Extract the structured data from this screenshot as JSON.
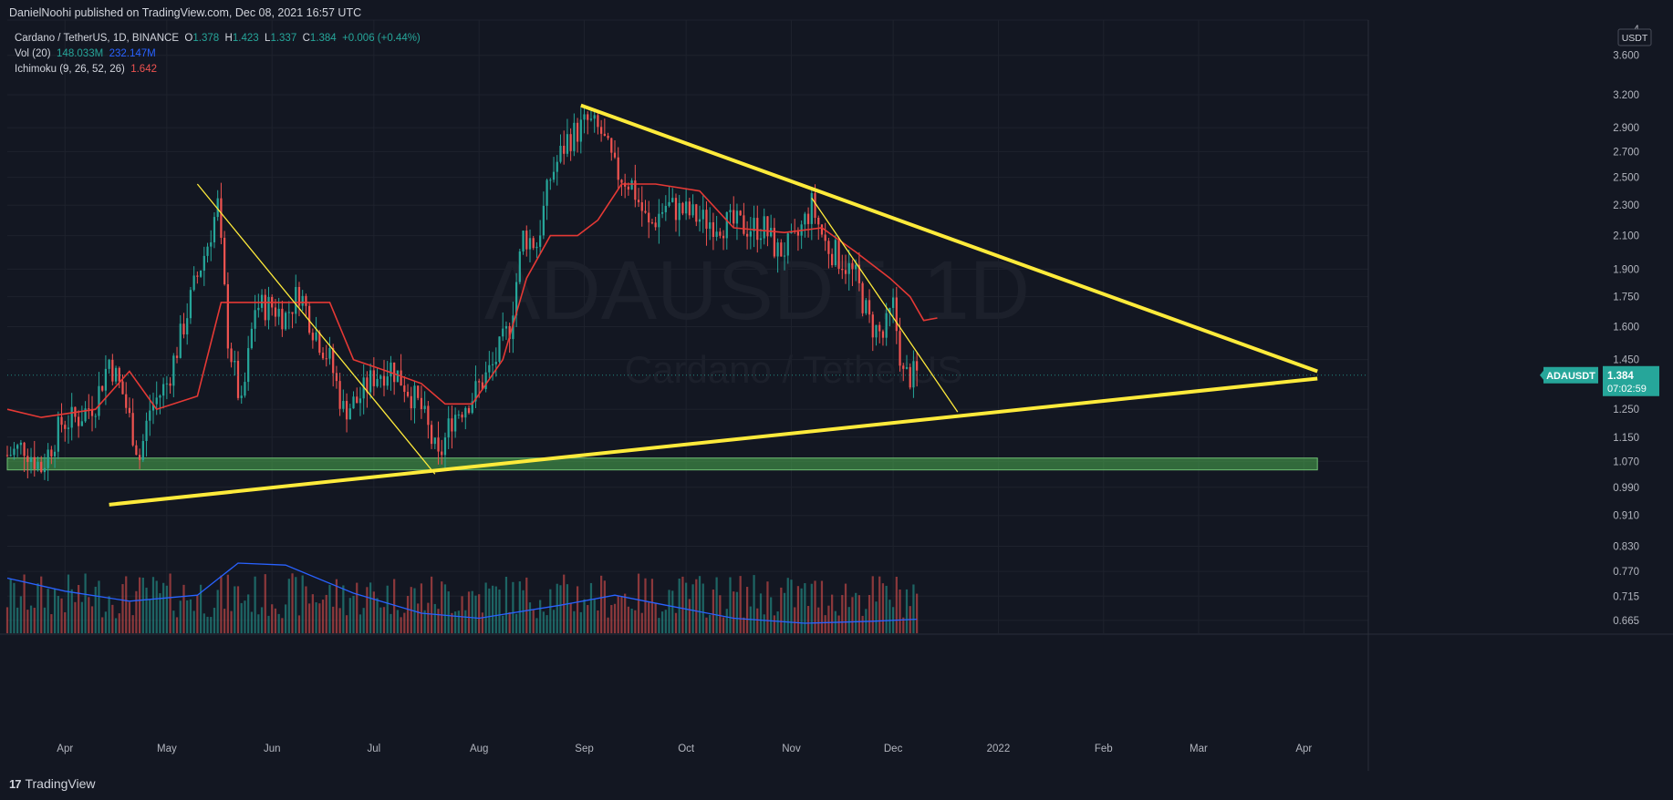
{
  "publisher": "DanielNoohi published on TradingView.com, Dec 08, 2021 16:57 UTC",
  "legend": {
    "symbol_line": "Cardano / TetherUS, 1D, BINANCE",
    "o_label": "O",
    "o": "1.378",
    "h_label": "H",
    "h": "1.423",
    "l_label": "L",
    "l": "1.337",
    "c_label": "C",
    "c": "1.384",
    "change": "+0.006 (+0.44%)",
    "vol_label": "Vol (20)",
    "vol_value": "148.033M",
    "vol_ma": "232.147M",
    "ichimoku_label": "Ichimoku (9, 26, 52, 26)",
    "ichimoku_value": "1.642"
  },
  "watermark": {
    "ticker": "ADAUSDT, 1D",
    "name": "Cardano / TetherUS"
  },
  "price_tag": {
    "symbol": "ADAUSDT",
    "price": "1.384",
    "countdown": "07:02:59"
  },
  "currency": "USDT",
  "footer": {
    "logo_mark": "17",
    "brand": "TradingView"
  },
  "colors": {
    "background": "#131722",
    "up": "#26a69a",
    "down": "#ef5350",
    "trendline": "#ffeb3b",
    "kijun": "#e53935",
    "volume_ma": "#2962ff",
    "support_zone": "#4caf50"
  },
  "chart_data": {
    "type": "candlestick",
    "y_scale": "log",
    "ylim": [
      0.64,
      4.0
    ],
    "yticks": [
      "4",
      "3.600",
      "3.200",
      "2.900",
      "2.700",
      "2.500",
      "2.300",
      "2.100",
      "1.900",
      "1.750",
      "1.600",
      "1.450",
      "1.250",
      "1.150",
      "1.070",
      "0.990",
      "0.910",
      "0.830",
      "0.770",
      "0.715",
      "0.665"
    ],
    "xticks": [
      "Apr",
      "May",
      "Jun",
      "Jul",
      "Aug",
      "Sep",
      "Oct",
      "Nov",
      "Dec",
      "2022",
      "Feb",
      "Mar",
      "Apr"
    ],
    "xtick_dates": [
      "2021-04-01",
      "2021-05-01",
      "2021-06-01",
      "2021-07-01",
      "2021-08-01",
      "2021-09-01",
      "2021-10-01",
      "2021-11-01",
      "2021-12-01",
      "2022-01-01",
      "2022-02-01",
      "2022-03-01",
      "2022-04-01"
    ],
    "x_range": [
      "2021-03-15",
      "2022-04-20"
    ],
    "close_path": [
      [
        "2021-03-15",
        1.09
      ],
      [
        "2021-03-20",
        1.12
      ],
      [
        "2021-03-25",
        1.05
      ],
      [
        "2021-03-31",
        1.2
      ],
      [
        "2021-04-05",
        1.22
      ],
      [
        "2021-04-10",
        1.28
      ],
      [
        "2021-04-14",
        1.45
      ],
      [
        "2021-04-18",
        1.31
      ],
      [
        "2021-04-23",
        1.08
      ],
      [
        "2021-04-26",
        1.25
      ],
      [
        "2021-05-01",
        1.35
      ],
      [
        "2021-05-05",
        1.55
      ],
      [
        "2021-05-09",
        1.8
      ],
      [
        "2021-05-13",
        2.05
      ],
      [
        "2021-05-16",
        2.3
      ],
      [
        "2021-05-19",
        1.55
      ],
      [
        "2021-05-23",
        1.25
      ],
      [
        "2021-05-27",
        1.7
      ],
      [
        "2021-06-01",
        1.7
      ],
      [
        "2021-06-05",
        1.65
      ],
      [
        "2021-06-09",
        1.78
      ],
      [
        "2021-06-13",
        1.6
      ],
      [
        "2021-06-18",
        1.45
      ],
      [
        "2021-06-22",
        1.25
      ],
      [
        "2021-06-26",
        1.28
      ],
      [
        "2021-07-01",
        1.38
      ],
      [
        "2021-07-06",
        1.42
      ],
      [
        "2021-07-10",
        1.35
      ],
      [
        "2021-07-15",
        1.25
      ],
      [
        "2021-07-20",
        1.07
      ],
      [
        "2021-07-24",
        1.22
      ],
      [
        "2021-07-30",
        1.3
      ],
      [
        "2021-08-05",
        1.42
      ],
      [
        "2021-08-10",
        1.6
      ],
      [
        "2021-08-14",
        2.1
      ],
      [
        "2021-08-18",
        2.05
      ],
      [
        "2021-08-22",
        2.5
      ],
      [
        "2021-08-27",
        2.8
      ],
      [
        "2021-09-02",
        2.95
      ],
      [
        "2021-09-06",
        2.85
      ],
      [
        "2021-09-10",
        2.55
      ],
      [
        "2021-09-15",
        2.45
      ],
      [
        "2021-09-20",
        2.15
      ],
      [
        "2021-09-25",
        2.3
      ],
      [
        "2021-10-01",
        2.25
      ],
      [
        "2021-10-06",
        2.2
      ],
      [
        "2021-10-12",
        2.18
      ],
      [
        "2021-10-18",
        2.16
      ],
      [
        "2021-10-24",
        2.15
      ],
      [
        "2021-10-28",
        2.0
      ],
      [
        "2021-11-02",
        2.05
      ],
      [
        "2021-11-07",
        2.3
      ],
      [
        "2021-11-11",
        2.05
      ],
      [
        "2021-11-16",
        1.95
      ],
      [
        "2021-11-20",
        1.85
      ],
      [
        "2021-11-24",
        1.62
      ],
      [
        "2021-11-28",
        1.55
      ],
      [
        "2021-12-01",
        1.7
      ],
      [
        "2021-12-04",
        1.38
      ],
      [
        "2021-12-08",
        1.384
      ]
    ],
    "kijun_path": [
      [
        "2021-03-15",
        1.25
      ],
      [
        "2021-03-25",
        1.22
      ],
      [
        "2021-04-10",
        1.25
      ],
      [
        "2021-04-20",
        1.4
      ],
      [
        "2021-04-28",
        1.25
      ],
      [
        "2021-05-10",
        1.3
      ],
      [
        "2021-05-17",
        1.72
      ],
      [
        "2021-05-25",
        1.72
      ],
      [
        "2021-06-05",
        1.72
      ],
      [
        "2021-06-18",
        1.72
      ],
      [
        "2021-06-25",
        1.45
      ],
      [
        "2021-07-05",
        1.4
      ],
      [
        "2021-07-15",
        1.35
      ],
      [
        "2021-07-22",
        1.27
      ],
      [
        "2021-07-30",
        1.27
      ],
      [
        "2021-08-08",
        1.45
      ],
      [
        "2021-08-15",
        1.85
      ],
      [
        "2021-08-22",
        2.1
      ],
      [
        "2021-08-30",
        2.1
      ],
      [
        "2021-09-05",
        2.2
      ],
      [
        "2021-09-12",
        2.45
      ],
      [
        "2021-09-22",
        2.45
      ],
      [
        "2021-10-05",
        2.4
      ],
      [
        "2021-10-15",
        2.15
      ],
      [
        "2021-10-30",
        2.12
      ],
      [
        "2021-11-10",
        2.15
      ],
      [
        "2021-11-20",
        2.0
      ],
      [
        "2021-11-30",
        1.85
      ],
      [
        "2021-12-06",
        1.75
      ],
      [
        "2021-12-10",
        1.63
      ],
      [
        "2021-12-14",
        1.642
      ]
    ],
    "trendlines": [
      {
        "from": [
          "2021-08-31",
          3.1
        ],
        "to": [
          "2022-04-05",
          1.4
        ],
        "weight": "thick"
      },
      {
        "from": [
          "2021-04-14",
          0.94
        ],
        "to": [
          "2022-04-05",
          1.37
        ],
        "weight": "thick"
      },
      {
        "from": [
          "2021-05-10",
          2.45
        ],
        "to": [
          "2021-07-19",
          1.03
        ],
        "weight": "thin"
      },
      {
        "from": [
          "2021-11-07",
          2.35
        ],
        "to": [
          "2021-12-20",
          1.24
        ],
        "weight": "thin"
      }
    ],
    "support_zone": {
      "from": "2021-03-15",
      "to": "2022-04-05",
      "low": 1.04,
      "high": 1.06
    },
    "volume_ma_path": [
      [
        "2021-03-15",
        0.55
      ],
      [
        "2021-04-01",
        0.42
      ],
      [
        "2021-04-20",
        0.32
      ],
      [
        "2021-05-10",
        0.38
      ],
      [
        "2021-05-22",
        0.7
      ],
      [
        "2021-06-05",
        0.68
      ],
      [
        "2021-06-25",
        0.4
      ],
      [
        "2021-07-15",
        0.2
      ],
      [
        "2021-08-01",
        0.15
      ],
      [
        "2021-08-25",
        0.28
      ],
      [
        "2021-09-10",
        0.38
      ],
      [
        "2021-09-25",
        0.28
      ],
      [
        "2021-10-15",
        0.15
      ],
      [
        "2021-11-05",
        0.1
      ],
      [
        "2021-11-25",
        0.12
      ],
      [
        "2021-12-08",
        0.14
      ]
    ]
  }
}
